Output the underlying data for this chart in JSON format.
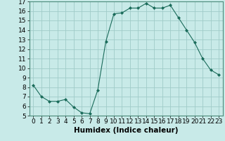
{
  "x": [
    0,
    1,
    2,
    3,
    4,
    5,
    6,
    7,
    8,
    9,
    10,
    11,
    12,
    13,
    14,
    15,
    16,
    17,
    18,
    19,
    20,
    21,
    22,
    23
  ],
  "y": [
    8.2,
    7.0,
    6.5,
    6.5,
    6.7,
    5.9,
    5.3,
    5.2,
    7.7,
    12.8,
    15.7,
    15.8,
    16.3,
    16.3,
    16.8,
    16.3,
    16.3,
    16.6,
    15.3,
    14.0,
    12.7,
    11.0,
    9.8,
    9.3
  ],
  "line_color": "#1a6b5a",
  "marker": "D",
  "marker_size": 2.0,
  "bg_color": "#c8eae8",
  "grid_color": "#a0ccc8",
  "xlabel": "Humidex (Indice chaleur)",
  "xlabel_fontsize": 7.5,
  "tick_fontsize": 6.5,
  "ylim": [
    5,
    17
  ],
  "xlim": [
    -0.5,
    23.5
  ],
  "yticks": [
    5,
    6,
    7,
    8,
    9,
    10,
    11,
    12,
    13,
    14,
    15,
    16,
    17
  ],
  "xticks": [
    0,
    1,
    2,
    3,
    4,
    5,
    6,
    7,
    8,
    9,
    10,
    11,
    12,
    13,
    14,
    15,
    16,
    17,
    18,
    19,
    20,
    21,
    22,
    23
  ]
}
